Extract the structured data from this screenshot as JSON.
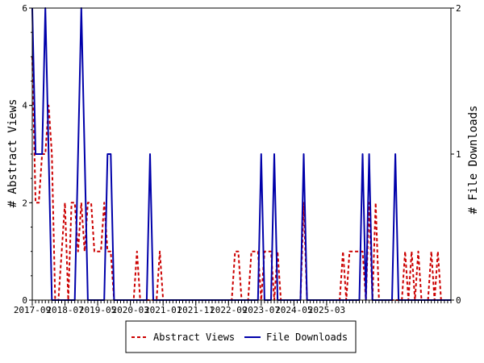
{
  "chart_data": {
    "type": "line",
    "ylabel_left": "# Abstract Views",
    "ylabel_right": "# File Downloads",
    "x_tick_labels": [
      "2017-09",
      "2018-07",
      "2019-05",
      "2020-03",
      "2021-01",
      "2021-11",
      "2022-09",
      "2023-07",
      "2024-05",
      "2025-03"
    ],
    "y_left_ticks": [
      "0",
      "2",
      "4",
      "6"
    ],
    "y_right_ticks": [
      "0",
      "1",
      "2"
    ],
    "ylim_left": [
      0,
      6
    ],
    "ylim_right": [
      0,
      2
    ],
    "x_start": "2017-09",
    "legend_position": "bottom",
    "grid": false,
    "series": [
      {
        "name": "Abstract Views",
        "axis": "left",
        "style": "dashed",
        "color": "#cc0000",
        "values": [
          5,
          2,
          2,
          3,
          3,
          4,
          3,
          0,
          0,
          1,
          2,
          0,
          2,
          2,
          1,
          2,
          1,
          2,
          2,
          1,
          1,
          1,
          2,
          1,
          1,
          0,
          0,
          0,
          0,
          0,
          0,
          0,
          1,
          0,
          0,
          0,
          0,
          0,
          0,
          1,
          0,
          0,
          0,
          0,
          0,
          0,
          0,
          0,
          0,
          0,
          0,
          0,
          0,
          0,
          0,
          0,
          0,
          0,
          0,
          0,
          0,
          0,
          1,
          1,
          0,
          0,
          0,
          1,
          1,
          1,
          0,
          1,
          1,
          1,
          0,
          1,
          0,
          0,
          0,
          0,
          0,
          0,
          0,
          2,
          0,
          0,
          0,
          0,
          0,
          0,
          0,
          0,
          0,
          0,
          0,
          1,
          0,
          1,
          1,
          1,
          1,
          1,
          0,
          2,
          0,
          2,
          0,
          0,
          0,
          0,
          0,
          0,
          0,
          0,
          1,
          0,
          1,
          0,
          1,
          0,
          0,
          0,
          1,
          0,
          1,
          0,
          0,
          0,
          0
        ]
      },
      {
        "name": "File Downloads",
        "axis": "right",
        "style": "solid",
        "color": "#0000aa",
        "values": [
          2,
          1,
          1,
          1,
          2,
          1,
          0,
          0,
          0,
          0,
          0,
          0,
          0,
          0,
          1,
          2,
          1,
          0,
          0,
          0,
          0,
          0,
          0,
          1,
          1,
          0,
          0,
          0,
          0,
          0,
          0,
          0,
          0,
          0,
          0,
          0,
          1,
          0,
          0,
          0,
          0,
          0,
          0,
          0,
          0,
          0,
          0,
          0,
          0,
          0,
          0,
          0,
          0,
          0,
          0,
          0,
          0,
          0,
          0,
          0,
          0,
          0,
          0,
          0,
          0,
          0,
          0,
          0,
          0,
          0,
          1,
          0,
          0,
          0,
          1,
          0,
          0,
          0,
          0,
          0,
          0,
          0,
          0,
          1,
          0,
          0,
          0,
          0,
          0,
          0,
          0,
          0,
          0,
          0,
          0,
          0,
          0,
          0,
          0,
          0,
          0,
          1,
          0,
          1,
          0,
          0,
          0,
          0,
          0,
          0,
          0,
          1,
          0,
          0,
          0,
          0,
          0,
          0,
          0,
          0,
          0,
          0,
          0,
          0,
          0,
          0,
          0,
          0,
          0
        ]
      }
    ]
  }
}
